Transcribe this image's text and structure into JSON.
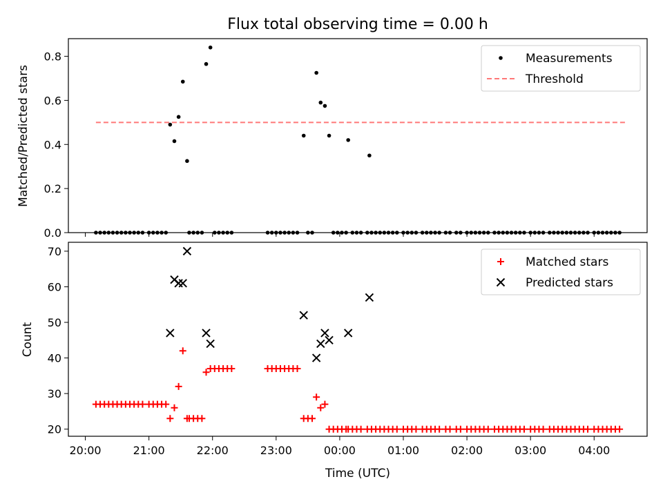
{
  "figure": {
    "title": "Flux total observing time = 0.00 h",
    "xlabel": "Time (UTC)",
    "xticks": [
      {
        "t": 0,
        "label": "20:00"
      },
      {
        "t": 60,
        "label": "21:00"
      },
      {
        "t": 120,
        "label": "22:00"
      },
      {
        "t": 180,
        "label": "23:00"
      },
      {
        "t": 240,
        "label": "00:00"
      },
      {
        "t": 300,
        "label": "01:00"
      },
      {
        "t": 360,
        "label": "02:00"
      },
      {
        "t": 420,
        "label": "03:00"
      },
      {
        "t": 480,
        "label": "04:00"
      }
    ]
  },
  "chart_data": [
    {
      "type": "scatter",
      "panel": "top",
      "ylabel": "Matched/Predicted stars",
      "xlim": [
        "19:44",
        "04:50"
      ],
      "ylim": [
        0,
        0.88
      ],
      "yticks": [
        0.0,
        0.2,
        0.4,
        0.6,
        0.8
      ],
      "legend_position": "top-right",
      "legend": [
        {
          "label": "Measurements",
          "marker": "dot",
          "color": "#000000"
        },
        {
          "label": "Threshold",
          "marker": "dashed-line",
          "color": "#ff7777"
        }
      ],
      "threshold": {
        "value": 0.5,
        "x_start": "20:10",
        "x_end": "04:30",
        "color": "#ff7777"
      },
      "series": [
        {
          "name": "Measurements",
          "color": "#000000",
          "points": [
            [
              "20:10",
              0
            ],
            [
              "20:14",
              0
            ],
            [
              "20:18",
              0
            ],
            [
              "20:22",
              0
            ],
            [
              "20:26",
              0
            ],
            [
              "20:30",
              0
            ],
            [
              "20:34",
              0
            ],
            [
              "20:38",
              0
            ],
            [
              "20:42",
              0
            ],
            [
              "20:46",
              0
            ],
            [
              "20:50",
              0
            ],
            [
              "20:54",
              0
            ],
            [
              "21:00",
              0
            ],
            [
              "21:04",
              0
            ],
            [
              "21:08",
              0
            ],
            [
              "21:12",
              0
            ],
            [
              "21:16",
              0
            ],
            [
              "21:20",
              0.49
            ],
            [
              "21:24",
              0.415
            ],
            [
              "21:28",
              0.525
            ],
            [
              "21:32",
              0.685
            ],
            [
              "21:36",
              0.325
            ],
            [
              "21:38",
              0
            ],
            [
              "21:42",
              0
            ],
            [
              "21:46",
              0
            ],
            [
              "21:50",
              0
            ],
            [
              "21:54",
              0.765
            ],
            [
              "21:58",
              0.84
            ],
            [
              "22:02",
              0
            ],
            [
              "22:06",
              0
            ],
            [
              "22:10",
              0
            ],
            [
              "22:14",
              0
            ],
            [
              "22:18",
              0
            ],
            [
              "22:52",
              0
            ],
            [
              "22:56",
              0
            ],
            [
              "23:00",
              0
            ],
            [
              "23:04",
              0
            ],
            [
              "23:08",
              0
            ],
            [
              "23:12",
              0
            ],
            [
              "23:16",
              0
            ],
            [
              "23:20",
              0
            ],
            [
              "23:26",
              0.44
            ],
            [
              "23:30",
              0
            ],
            [
              "23:34",
              0
            ],
            [
              "23:38",
              0.725
            ],
            [
              "23:42",
              0.59
            ],
            [
              "23:46",
              0.575
            ],
            [
              "23:50",
              0.44
            ],
            [
              "23:54",
              0
            ],
            [
              "23:58",
              0
            ],
            [
              "00:02",
              0
            ],
            [
              "00:06",
              0
            ],
            [
              "00:08",
              0.42
            ],
            [
              "00:12",
              0
            ],
            [
              "00:16",
              0
            ],
            [
              "00:20",
              0
            ],
            [
              "00:28",
              0.35
            ],
            [
              "00:26",
              0
            ],
            [
              "00:30",
              0
            ],
            [
              "00:34",
              0
            ],
            [
              "00:38",
              0
            ],
            [
              "00:42",
              0
            ],
            [
              "00:46",
              0
            ],
            [
              "00:50",
              0
            ],
            [
              "00:54",
              0
            ],
            [
              "01:00",
              0
            ],
            [
              "01:04",
              0
            ],
            [
              "01:08",
              0
            ],
            [
              "01:12",
              0
            ],
            [
              "01:18",
              0
            ],
            [
              "01:22",
              0
            ],
            [
              "01:26",
              0
            ],
            [
              "01:30",
              0
            ],
            [
              "01:34",
              0
            ],
            [
              "01:40",
              0
            ],
            [
              "01:44",
              0
            ],
            [
              "01:50",
              0
            ],
            [
              "01:54",
              0
            ],
            [
              "02:00",
              0
            ],
            [
              "02:04",
              0
            ],
            [
              "02:08",
              0
            ],
            [
              "02:12",
              0
            ],
            [
              "02:16",
              0
            ],
            [
              "02:20",
              0
            ],
            [
              "02:26",
              0
            ],
            [
              "02:30",
              0
            ],
            [
              "02:34",
              0
            ],
            [
              "02:38",
              0
            ],
            [
              "02:42",
              0
            ],
            [
              "02:46",
              0
            ],
            [
              "02:50",
              0
            ],
            [
              "02:54",
              0
            ],
            [
              "03:00",
              0
            ],
            [
              "03:04",
              0
            ],
            [
              "03:08",
              0
            ],
            [
              "03:12",
              0
            ],
            [
              "03:18",
              0
            ],
            [
              "03:22",
              0
            ],
            [
              "03:26",
              0
            ],
            [
              "03:30",
              0
            ],
            [
              "03:34",
              0
            ],
            [
              "03:38",
              0
            ],
            [
              "03:42",
              0
            ],
            [
              "03:46",
              0
            ],
            [
              "03:50",
              0
            ],
            [
              "03:54",
              0
            ],
            [
              "04:00",
              0
            ],
            [
              "04:04",
              0
            ],
            [
              "04:08",
              0
            ],
            [
              "04:12",
              0
            ],
            [
              "04:16",
              0
            ],
            [
              "04:20",
              0
            ],
            [
              "04:24",
              0
            ]
          ]
        }
      ]
    },
    {
      "type": "scatter",
      "panel": "bottom",
      "ylabel": "Count",
      "xlim": [
        "19:44",
        "04:50"
      ],
      "ylim": [
        18,
        72.5
      ],
      "yticks": [
        20,
        30,
        40,
        50,
        60,
        70
      ],
      "legend_position": "top-right",
      "legend": [
        {
          "label": "Matched stars",
          "marker": "plus",
          "color": "#ff0000"
        },
        {
          "label": "Predicted stars",
          "marker": "x",
          "color": "#000000"
        }
      ],
      "series": [
        {
          "name": "Matched stars",
          "color": "#ff0000",
          "points": [
            [
              "20:10",
              27
            ],
            [
              "20:14",
              27
            ],
            [
              "20:18",
              27
            ],
            [
              "20:22",
              27
            ],
            [
              "20:26",
              27
            ],
            [
              "20:30",
              27
            ],
            [
              "20:34",
              27
            ],
            [
              "20:38",
              27
            ],
            [
              "20:42",
              27
            ],
            [
              "20:46",
              27
            ],
            [
              "20:50",
              27
            ],
            [
              "20:54",
              27
            ],
            [
              "21:00",
              27
            ],
            [
              "21:04",
              27
            ],
            [
              "21:08",
              27
            ],
            [
              "21:12",
              27
            ],
            [
              "21:16",
              27
            ],
            [
              "21:20",
              23
            ],
            [
              "21:24",
              26
            ],
            [
              "21:28",
              32
            ],
            [
              "21:32",
              42
            ],
            [
              "21:36",
              23
            ],
            [
              "21:38",
              23
            ],
            [
              "21:42",
              23
            ],
            [
              "21:46",
              23
            ],
            [
              "21:50",
              23
            ],
            [
              "21:54",
              36
            ],
            [
              "21:58",
              37
            ],
            [
              "22:02",
              37
            ],
            [
              "22:06",
              37
            ],
            [
              "22:10",
              37
            ],
            [
              "22:14",
              37
            ],
            [
              "22:18",
              37
            ],
            [
              "22:52",
              37
            ],
            [
              "22:56",
              37
            ],
            [
              "23:00",
              37
            ],
            [
              "23:04",
              37
            ],
            [
              "23:08",
              37
            ],
            [
              "23:12",
              37
            ],
            [
              "23:16",
              37
            ],
            [
              "23:20",
              37
            ],
            [
              "23:26",
              23
            ],
            [
              "23:30",
              23
            ],
            [
              "23:34",
              23
            ],
            [
              "23:38",
              29
            ],
            [
              "23:42",
              26
            ],
            [
              "23:46",
              27
            ],
            [
              "23:50",
              20
            ],
            [
              "23:54",
              20
            ],
            [
              "23:58",
              20
            ],
            [
              "00:02",
              20
            ],
            [
              "00:06",
              20
            ],
            [
              "00:08",
              20
            ],
            [
              "00:12",
              20
            ],
            [
              "00:16",
              20
            ],
            [
              "00:20",
              20
            ],
            [
              "00:26",
              20
            ],
            [
              "00:30",
              20
            ],
            [
              "00:34",
              20
            ],
            [
              "00:38",
              20
            ],
            [
              "00:42",
              20
            ],
            [
              "00:46",
              20
            ],
            [
              "00:50",
              20
            ],
            [
              "00:54",
              20
            ],
            [
              "01:00",
              20
            ],
            [
              "01:04",
              20
            ],
            [
              "01:08",
              20
            ],
            [
              "01:12",
              20
            ],
            [
              "01:18",
              20
            ],
            [
              "01:22",
              20
            ],
            [
              "01:26",
              20
            ],
            [
              "01:30",
              20
            ],
            [
              "01:34",
              20
            ],
            [
              "01:40",
              20
            ],
            [
              "01:44",
              20
            ],
            [
              "01:50",
              20
            ],
            [
              "01:54",
              20
            ],
            [
              "02:00",
              20
            ],
            [
              "02:04",
              20
            ],
            [
              "02:08",
              20
            ],
            [
              "02:12",
              20
            ],
            [
              "02:16",
              20
            ],
            [
              "02:20",
              20
            ],
            [
              "02:26",
              20
            ],
            [
              "02:30",
              20
            ],
            [
              "02:34",
              20
            ],
            [
              "02:38",
              20
            ],
            [
              "02:42",
              20
            ],
            [
              "02:46",
              20
            ],
            [
              "02:50",
              20
            ],
            [
              "02:54",
              20
            ],
            [
              "03:00",
              20
            ],
            [
              "03:04",
              20
            ],
            [
              "03:08",
              20
            ],
            [
              "03:12",
              20
            ],
            [
              "03:18",
              20
            ],
            [
              "03:22",
              20
            ],
            [
              "03:26",
              20
            ],
            [
              "03:30",
              20
            ],
            [
              "03:34",
              20
            ],
            [
              "03:38",
              20
            ],
            [
              "03:42",
              20
            ],
            [
              "03:46",
              20
            ],
            [
              "03:50",
              20
            ],
            [
              "03:54",
              20
            ],
            [
              "04:00",
              20
            ],
            [
              "04:04",
              20
            ],
            [
              "04:08",
              20
            ],
            [
              "04:12",
              20
            ],
            [
              "04:16",
              20
            ],
            [
              "04:20",
              20
            ],
            [
              "04:24",
              20
            ]
          ]
        },
        {
          "name": "Predicted stars",
          "color": "#000000",
          "points": [
            [
              "21:20",
              47
            ],
            [
              "21:24",
              62
            ],
            [
              "21:28",
              61
            ],
            [
              "21:32",
              61
            ],
            [
              "21:36",
              70
            ],
            [
              "21:54",
              47
            ],
            [
              "21:58",
              44
            ],
            [
              "23:26",
              52
            ],
            [
              "23:38",
              40
            ],
            [
              "23:42",
              44
            ],
            [
              "23:46",
              47
            ],
            [
              "23:50",
              45
            ],
            [
              "00:08",
              47
            ],
            [
              "00:28",
              57
            ]
          ]
        }
      ]
    }
  ]
}
